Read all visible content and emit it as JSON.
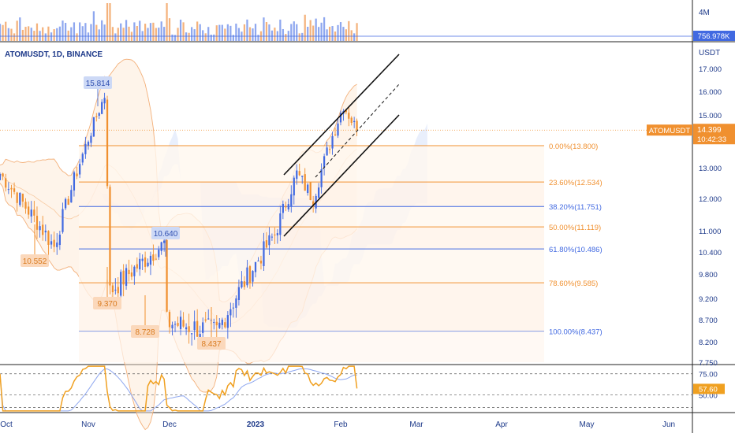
{
  "header": {
    "symbol_line": "ATOMUSDT, 1D, BINANCE",
    "currency": "USDT"
  },
  "volume_pane": {
    "scale_label": "4M",
    "current_volume": "756.978K"
  },
  "price_axis": {
    "ticks": [
      "17.000",
      "16.000",
      "15.000",
      "14.000",
      "13.000",
      "12.000",
      "11.000",
      "10.400",
      "9.800",
      "9.200",
      "8.700",
      "8.200",
      "7.750"
    ],
    "current_price_tag": "ATOMUSDT",
    "current_price": "14.399",
    "countdown": "10:42:33"
  },
  "time_axis": {
    "ticks": [
      "Oct",
      "Nov",
      "Dec",
      "2023",
      "Feb",
      "Mar",
      "Apr",
      "May",
      "Jun"
    ],
    "bold_tick": "2023"
  },
  "annotations": [
    {
      "label": "15.814",
      "kind": "high",
      "color": "#5b7bd6"
    },
    {
      "label": "10.552",
      "kind": "low",
      "color": "#f0902f"
    },
    {
      "label": "9.370",
      "kind": "low",
      "color": "#f0902f"
    },
    {
      "label": "10.640",
      "kind": "high",
      "color": "#5b7bd6"
    },
    {
      "label": "8.728",
      "kind": "low",
      "color": "#f0902f"
    },
    {
      "label": "8.437",
      "kind": "low",
      "color": "#f0902f"
    }
  ],
  "fib_levels": [
    {
      "label": "0.00%(13.800)",
      "value": 13.8,
      "color": "#f0902f"
    },
    {
      "label": "23.60%(12.534)",
      "value": 12.534,
      "color": "#f0902f"
    },
    {
      "label": "38.20%(11.751)",
      "value": 11.751,
      "color": "#4169e1"
    },
    {
      "label": "50.00%(11.119)",
      "value": 11.119,
      "color": "#f0902f"
    },
    {
      "label": "61.80%(10.486)",
      "value": 10.486,
      "color": "#4169e1"
    },
    {
      "label": "78.60%(9.585)",
      "value": 9.585,
      "color": "#f0902f"
    },
    {
      "label": "100.00%(8.437)",
      "value": 8.437,
      "color": "#4169e1"
    }
  ],
  "rsi_pane": {
    "ticks": [
      "75.00",
      "50.00"
    ],
    "current_value": "57.60"
  },
  "colors": {
    "bull": "#4169e1",
    "bear": "#f0902f",
    "volume_bull": "#8ea7ef",
    "volume_bear": "#f4b27c",
    "rsi_line": "#f0a020",
    "rsi_ma": "#8ea7ef",
    "price_line": "#f0902f"
  },
  "chart_data": {
    "type": "candlestick",
    "title": "ATOMUSDT, 1D, BINANCE",
    "ylabel": "USDT",
    "ylim": [
      7.6,
      17.6
    ],
    "x_start_date": "2022-10-01",
    "key_points": [
      {
        "date": "2022-10-01",
        "price": 12.8
      },
      {
        "date": "2022-10-20",
        "price": 10.552
      },
      {
        "date": "2022-11-07",
        "price": 15.814
      },
      {
        "date": "2022-11-09",
        "price": 9.37
      },
      {
        "date": "2022-11-29",
        "price": 10.64
      },
      {
        "date": "2022-11-22",
        "price": 8.728
      },
      {
        "date": "2022-12-18",
        "price": 8.437
      },
      {
        "date": "2023-01-08",
        "price": 10.9
      },
      {
        "date": "2023-01-16",
        "price": 12.8
      },
      {
        "date": "2023-01-22",
        "price": 12.0
      },
      {
        "date": "2023-02-02",
        "price": 15.4
      },
      {
        "date": "2023-02-07",
        "price": 14.399
      }
    ],
    "current_price": 14.399,
    "fib_retracement": {
      "high": 13.8,
      "low": 8.437
    },
    "rsi_current": 57.6
  }
}
